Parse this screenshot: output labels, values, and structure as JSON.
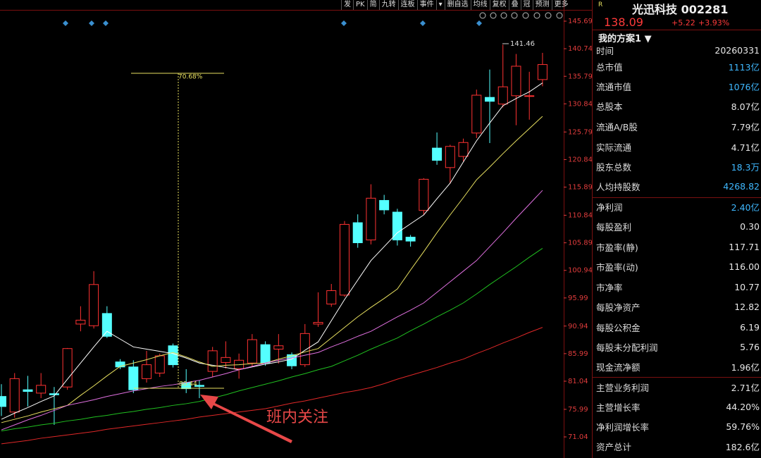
{
  "toolbar": {
    "items": [
      "发",
      "PK",
      "简",
      "九转",
      "连板",
      "事件",
      "▾",
      "删自选",
      "均线",
      "复权",
      "叠",
      "冠",
      "预测",
      "更多"
    ]
  },
  "stock": {
    "flag": "R",
    "name": "光迅科技 002281",
    "price": "138.09",
    "change": "+5.22",
    "change_pct": "+3.93%",
    "plan": "我的方案1 ▼"
  },
  "panel": {
    "rows": [
      [
        "时间",
        "20260331"
      ],
      [
        "总市值",
        "1113亿"
      ],
      [
        "流通市值",
        "1076亿"
      ],
      [
        "总股本",
        "8.07亿"
      ],
      [
        "流通A/B股",
        "7.79亿"
      ],
      [
        "实际流通",
        "4.71亿"
      ],
      [
        "股东总数",
        "18.3万"
      ],
      [
        "人均持股数",
        "4268.82"
      ],
      [
        "净利润",
        "2.40亿"
      ],
      [
        "每股盈利",
        "0.30"
      ],
      [
        "市盈率(静)",
        "117.71"
      ],
      [
        "市盈率(动)",
        "116.00"
      ],
      [
        "市净率",
        "10.77"
      ],
      [
        "每股净资产",
        "12.82"
      ],
      [
        "每股公积金",
        "6.19"
      ],
      [
        "每股未分配利润",
        "5.76"
      ],
      [
        "现金流净额",
        "1.96亿"
      ],
      [
        "主营业务利润",
        "2.71亿"
      ],
      [
        "主营增长率",
        "44.20%"
      ],
      [
        "净利润增长率",
        "59.76%"
      ],
      [
        "资产总计",
        "182.6亿"
      ]
    ]
  },
  "chart_data": {
    "type": "candlestick",
    "ylim": [
      67.25,
      147.59
    ],
    "yticks": [
      145.69,
      140.74,
      135.79,
      130.84,
      125.79,
      120.84,
      115.89,
      110.84,
      105.89,
      100.94,
      95.99,
      90.94,
      85.99,
      81.04,
      75.99,
      71.04
    ],
    "up_color": "#ff3232",
    "down_color": "#54ffff",
    "axis_color": "#e03c3c",
    "open": [
      78.3,
      75.5,
      79.5,
      78.9,
      78.8,
      80.0,
      91.3,
      91.0,
      93.2,
      84.5,
      83.6,
      81.5,
      82.5,
      87.4,
      80.8,
      80.3,
      82.8,
      84.4,
      83.3,
      84.3,
      87.6,
      86.8,
      85.8,
      84.0,
      91.3,
      94.9,
      96.5,
      109.5,
      106.4,
      113.5,
      111.4,
      106.9,
      111.7,
      122.9,
      119.4,
      121.4,
      125.6,
      132.0,
      130.8,
      132.3,
      132.2,
      135.2
    ],
    "high": [
      80.5,
      82.5,
      82.0,
      82.5,
      80.0,
      87.0,
      94.5,
      100.8,
      94.5,
      85.0,
      84.8,
      86.5,
      86.0,
      87.8,
      83.2,
      81.2,
      87.2,
      88.2,
      86.0,
      89.5,
      88.2,
      89.5,
      86.2,
      91.3,
      97.0,
      98.5,
      109.8,
      111.0,
      116.4,
      114.5,
      112.0,
      107.3,
      117.5,
      125.7,
      123.5,
      124.6,
      133.4,
      137.0,
      141.46,
      139.8,
      136.6,
      140.0
    ],
    "low": [
      74.8,
      74.5,
      76.5,
      78.0,
      73.2,
      79.5,
      90.0,
      90.5,
      88.8,
      83.2,
      78.9,
      80.8,
      81.8,
      83.5,
      78.9,
      78.0,
      81.8,
      83.3,
      81.5,
      83.6,
      83.8,
      84.2,
      83.2,
      83.6,
      90.8,
      94.4,
      96.2,
      105.0,
      105.6,
      111.0,
      105.4,
      105.2,
      110.9,
      119.9,
      116.5,
      120.5,
      124.7,
      123.8,
      130.2,
      127.0,
      128.0,
      134.0
    ],
    "close": [
      76.5,
      81.5,
      79.2,
      80.3,
      78.6,
      86.9,
      92.0,
      98.4,
      89.1,
      83.6,
      79.5,
      84.0,
      85.6,
      84.0,
      79.7,
      80.1,
      86.5,
      85.3,
      84.8,
      88.5,
      84.3,
      87.4,
      83.8,
      89.6,
      91.6,
      97.3,
      109.2,
      105.9,
      113.9,
      111.8,
      106.4,
      106.2,
      117.3,
      120.7,
      123.2,
      123.9,
      132.4,
      131.3,
      133.9,
      137.6,
      132.3,
      137.9
    ],
    "series": [
      {
        "color": "#ffffff",
        "values": [
          74.2,
          75.3,
          76.3,
          77.4,
          78.4,
          81.4,
          84.3,
          87.2,
          90.0,
          88.6,
          87.2,
          86.8,
          86.4,
          86.0,
          85.2,
          84.3,
          83.9,
          83.5,
          83.1,
          83.6,
          84.1,
          84.5,
          85.0,
          86.6,
          88.1,
          91.9,
          95.7,
          99.2,
          102.7,
          105.2,
          107.7,
          109.3,
          110.9,
          113.8,
          116.6,
          120.4,
          124.2,
          127.4,
          130.5,
          131.8,
          133.0,
          134.6
        ]
      },
      {
        "color": "#e8e060",
        "values": [
          73.6,
          74.2,
          74.8,
          75.5,
          76.1,
          76.7,
          78.5,
          80.2,
          82.0,
          83.7,
          84.3,
          84.9,
          85.6,
          86.2,
          85.4,
          84.5,
          83.7,
          83.9,
          84.0,
          84.2,
          84.3,
          85.0,
          85.6,
          86.3,
          86.9,
          88.8,
          90.7,
          92.6,
          94.3,
          95.9,
          97.6,
          101.0,
          104.3,
          107.7,
          110.9,
          114.0,
          117.2,
          119.5,
          121.9,
          124.2,
          126.4,
          128.6
        ]
      },
      {
        "color": "#e070e0",
        "values": [
          72.3,
          73.2,
          74.1,
          74.9,
          75.8,
          76.7,
          77.2,
          77.7,
          78.3,
          78.8,
          79.3,
          79.7,
          80.1,
          80.4,
          80.8,
          81.2,
          81.8,
          82.4,
          83.1,
          83.7,
          84.3,
          84.8,
          85.2,
          85.7,
          86.2,
          87.2,
          88.1,
          89.1,
          90.0,
          91.3,
          92.6,
          93.8,
          95.1,
          97.0,
          98.9,
          100.8,
          102.7,
          105.2,
          107.7,
          110.3,
          112.8,
          115.3
        ]
      },
      {
        "color": "#20c020",
        "values": [
          72.1,
          72.5,
          72.8,
          73.2,
          73.5,
          73.9,
          74.2,
          74.6,
          74.9,
          75.3,
          75.6,
          76.0,
          76.3,
          76.7,
          77.0,
          77.4,
          78.0,
          78.6,
          79.3,
          79.9,
          80.5,
          81.1,
          81.8,
          82.4,
          83.1,
          83.7,
          84.7,
          85.7,
          86.8,
          87.8,
          88.8,
          90.1,
          91.3,
          92.6,
          93.8,
          95.1,
          96.7,
          98.4,
          100.0,
          101.6,
          103.3,
          104.9
        ]
      },
      {
        "color": "#e02828",
        "values": [
          69.8,
          70.1,
          70.4,
          70.8,
          71.1,
          71.4,
          71.7,
          72.0,
          72.4,
          72.7,
          73.0,
          73.3,
          73.6,
          73.9,
          74.2,
          74.6,
          74.9,
          75.2,
          75.5,
          75.8,
          76.1,
          76.6,
          77.1,
          77.5,
          78.0,
          78.5,
          79.0,
          79.4,
          79.9,
          80.6,
          81.4,
          82.1,
          82.8,
          83.5,
          84.3,
          85.0,
          86.0,
          86.9,
          87.9,
          88.8,
          89.8,
          90.7
        ]
      }
    ],
    "annotations": [
      "141.46",
      "70.68%",
      "80.44",
      "班内关注"
    ]
  }
}
